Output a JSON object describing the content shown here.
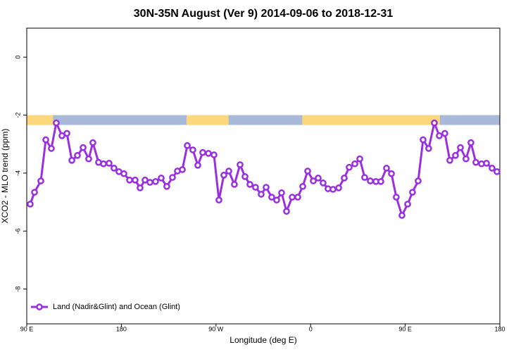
{
  "chart_data": {
    "type": "line",
    "title": "30N-35N August (Ver 9)   2014-09-06 to 2018-12-31",
    "x_label": "Longitude (deg E)",
    "y_label": "XCO2 - MLO trend (ppm)",
    "xlim": [
      90,
      540
    ],
    "xticks": [
      {
        "value": 90,
        "label": "90 E"
      },
      180,
      {
        "value": 270,
        "label": "90 W"
      },
      {
        "value": 360,
        "label": "0"
      },
      {
        "value": 450,
        "label": "90 E"
      },
      {
        "value": 540,
        "label": "180"
      }
    ],
    "ylim": [
      -9.2,
      1
    ],
    "yticks": [
      0,
      -2,
      -4,
      -6,
      -8
    ],
    "legend": "bottom-left",
    "surface_band": {
      "ylim": [
        -2.34,
        -2.0
      ],
      "ocean_color": "#a9b9d9",
      "land_color": "#fdd77c",
      "land": [
        [
          90,
          115
        ],
        [
          242,
          282
        ],
        [
          352,
          483
        ]
      ]
    },
    "series": [
      {
        "name": "Land (Nadir&Glint) and Ocean (Glint)",
        "color": "#9a2fe0",
        "x": [
          93.3,
          97.4,
          103.4,
          108.1,
          113.4,
          118.1,
          123.5,
          128.2,
          132.9,
          138.2,
          143.6,
          148.9,
          152.9,
          158.3,
          163.0,
          168.3,
          173.0,
          177.7,
          182.4,
          187.8,
          193.1,
          197.8,
          202.5,
          207.2,
          212.5,
          217.9,
          223.2,
          228.6,
          233.3,
          238.0,
          242.7,
          248.0,
          252.7,
          257.4,
          262.8,
          268.1,
          272.8,
          277.5,
          282.2,
          287.5,
          292.9,
          297.6,
          302.3,
          307.6,
          313.0,
          317.7,
          323.0,
          327.7,
          332.4,
          337.1,
          342.5,
          347.8,
          352.5,
          357.2,
          362.6,
          367.2,
          371.9,
          376.6,
          381.3,
          386.7,
          392.0,
          396.7,
          402.1,
          406.8,
          411.4,
          416.8,
          422.1,
          426.8,
          432.2,
          436.9,
          441.5,
          446.9,
          452.3,
          456.9,
          462.3,
          467.0,
          472.3,
          477.7,
          482.4,
          487.7,
          492.4,
          497.8,
          502.5,
          507.8,
          512.5,
          517.2,
          522.6,
          527.3,
          532.6,
          537.3
        ],
        "values": [
          -5.07,
          -4.66,
          -4.27,
          -2.85,
          -3.15,
          -2.27,
          -2.71,
          -2.63,
          -3.56,
          -3.39,
          -3.12,
          -3.51,
          -2.95,
          -3.63,
          -3.68,
          -3.66,
          -3.83,
          -3.95,
          -4.02,
          -4.24,
          -4.24,
          -4.51,
          -4.24,
          -4.32,
          -4.29,
          -4.17,
          -4.46,
          -4.15,
          -3.93,
          -3.88,
          -3.05,
          -3.2,
          -3.73,
          -3.29,
          -3.32,
          -3.37,
          -4.93,
          -4.07,
          -3.93,
          -4.39,
          -3.71,
          -4.12,
          -4.39,
          -4.49,
          -4.73,
          -4.49,
          -4.83,
          -4.93,
          -4.68,
          -5.32,
          -4.83,
          -4.83,
          -4.46,
          -3.93,
          -4.27,
          -4.17,
          -4.34,
          -4.54,
          -4.56,
          -4.51,
          -4.17,
          -3.8,
          -3.68,
          -3.51,
          -4.15,
          -4.27,
          -4.29,
          -4.29,
          -3.83,
          -4.02,
          -4.83,
          -5.46,
          -5.07,
          -4.66,
          -4.27,
          -2.85,
          -3.15,
          -2.27,
          -2.71,
          -2.63,
          -3.56,
          -3.39,
          -3.12,
          -3.51,
          -2.95,
          -3.63,
          -3.68,
          -3.66,
          -3.83,
          -3.95
        ]
      }
    ]
  }
}
